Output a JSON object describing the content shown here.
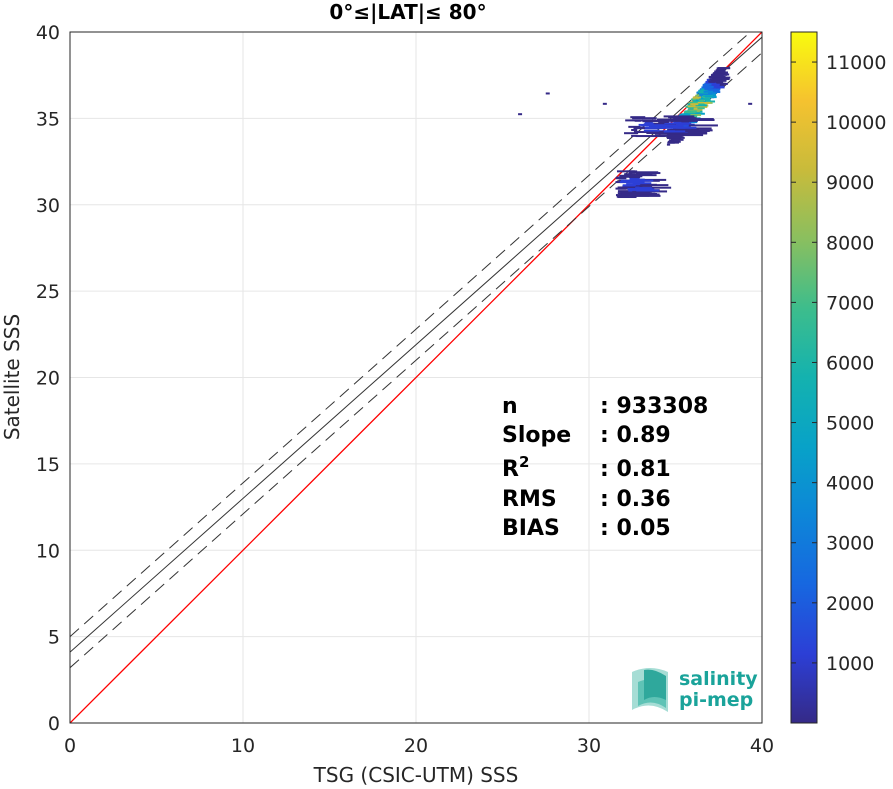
{
  "chart_data": {
    "type": "heatmap",
    "title": "0°≤|LAT|≤ 80°",
    "xlabel": "TSG (CSIC-UTM) SSS",
    "ylabel": "Satellite SSS",
    "xlim": [
      0,
      40
    ],
    "ylim": [
      0,
      40
    ],
    "xticks": [
      "0",
      "10",
      "20",
      "30",
      "40"
    ],
    "yticks": [
      "0",
      "5",
      "10",
      "15",
      "20",
      "25",
      "30",
      "35",
      "40"
    ],
    "grid": true,
    "identity_line": {
      "color": "#ff0000",
      "from": [
        0,
        0
      ],
      "to": [
        40,
        40
      ]
    },
    "fit_line": {
      "intercept": 4.1,
      "slope": 0.89,
      "color": "#333333"
    },
    "fit_band": {
      "offset": 0.9,
      "style": "dashed"
    },
    "density_clusters": [
      {
        "x": [
          34.5,
          37.5
        ],
        "y": [
          33.8,
          37.8
        ],
        "peak": 11000
      },
      {
        "x": [
          32.0,
          36.0
        ],
        "y": [
          34.0,
          35.2
        ],
        "peak": 1500
      },
      {
        "x": [
          31.5,
          33.0
        ],
        "y": [
          30.5,
          32.0
        ],
        "peak": 2000
      }
    ],
    "stats": [
      {
        "label": "n",
        "value": ": 933308"
      },
      {
        "label": "Slope",
        "value": ": 0.89"
      },
      {
        "label": "R",
        "sup": "2",
        "value": ": 0.81"
      },
      {
        "label": "RMS",
        "value": ": 0.36"
      },
      {
        "label": "BIAS",
        "value": ": 0.05"
      }
    ],
    "colorbar": {
      "ticks": [
        "1000",
        "2000",
        "3000",
        "4000",
        "5000",
        "6000",
        "7000",
        "8000",
        "9000",
        "10000",
        "11000"
      ],
      "min": 0,
      "max": 11500,
      "colormap": "parula"
    }
  },
  "logo": {
    "line1": "salinity",
    "line2": "pi-mep"
  }
}
